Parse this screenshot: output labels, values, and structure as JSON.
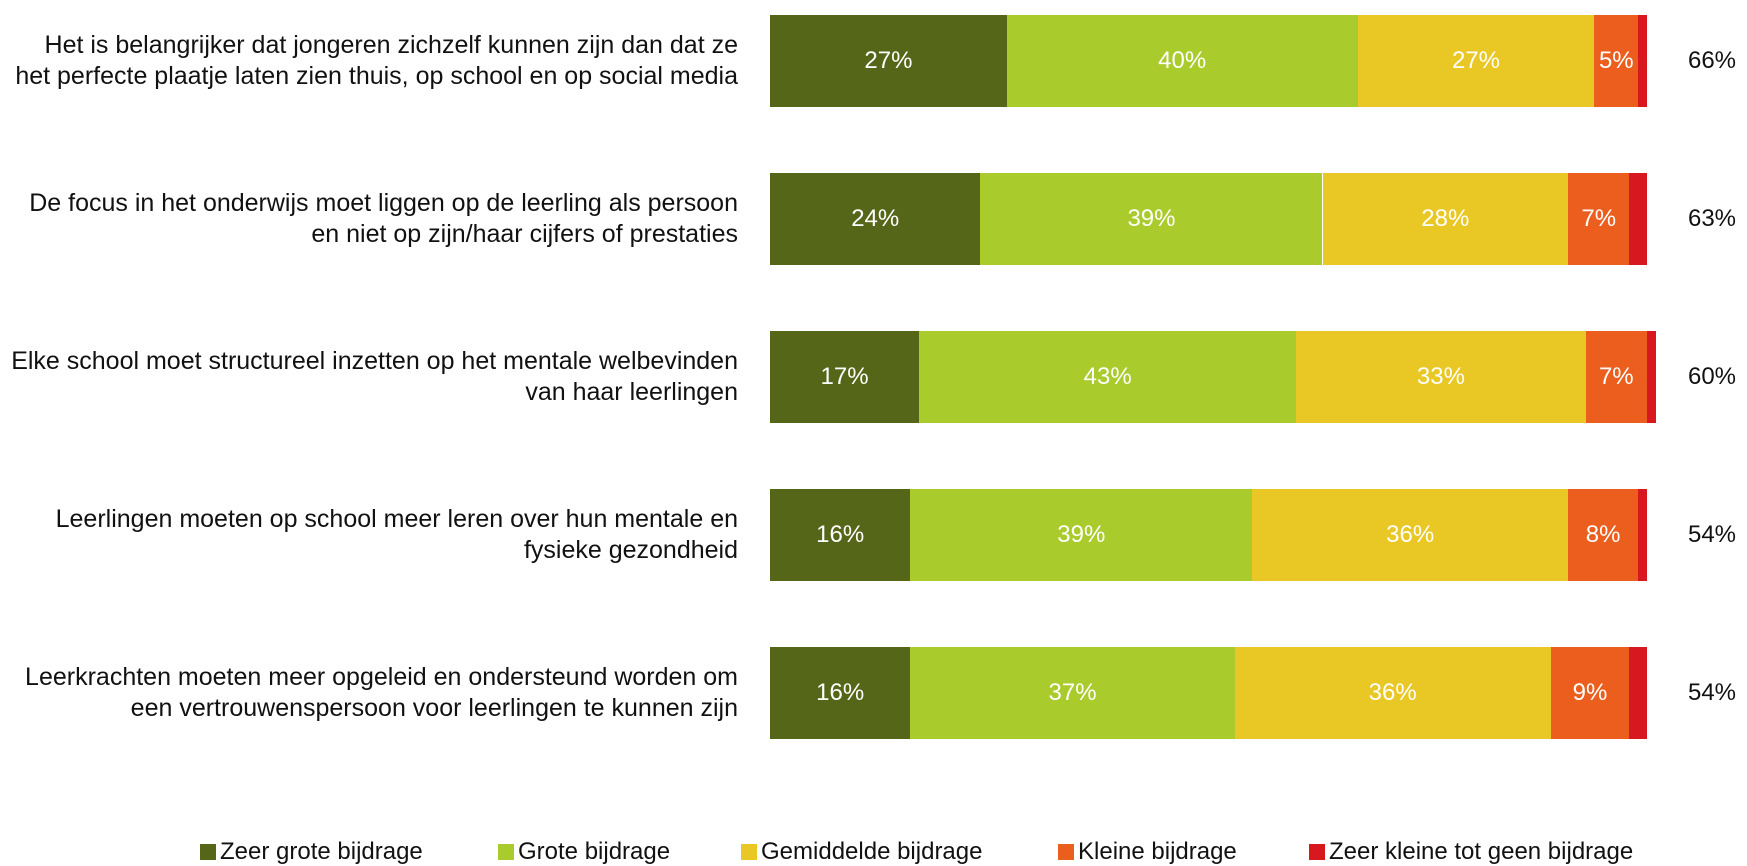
{
  "chart_data": {
    "type": "stacked_bar_horizontal",
    "categories": [
      "Het is belangrijker dat jongeren zichzelf kunnen zijn dan dat ze het perfecte plaatje laten zien thuis, op school en op social media",
      "De focus in het onderwijs moet liggen op de leerling als persoon en niet op zijn/haar cijfers of prestaties",
      "Elke school moet structureel inzetten op het mentale welbevinden van haar leerlingen",
      "Leerlingen moeten op school meer leren over hun mentale en fysieke gezondheid",
      "Leerkrachten moeten meer opgeleid en ondersteund worden om een vertrouwenspersoon voor leerlingen te kunnen zijn"
    ],
    "xlim": [
      0,
      100
    ],
    "series": [
      {
        "name": "Zeer grote bijdrage",
        "color": "#566619",
        "values": [
          27,
          24,
          17,
          16,
          16
        ],
        "value_labels": [
          "27%",
          "24%",
          "17%",
          "16%",
          "16%"
        ]
      },
      {
        "name": "Grote bijdrage",
        "color": "#aacb2c",
        "values": [
          40,
          39,
          43,
          39,
          37
        ],
        "value_labels": [
          "40%",
          "39%",
          "43%",
          "39%",
          "37%"
        ]
      },
      {
        "name": "Gemiddelde bijdrage",
        "color": "#e9c826",
        "values": [
          27,
          28,
          33,
          36,
          36
        ],
        "value_labels": [
          "27%",
          "28%",
          "33%",
          "36%",
          "36%"
        ]
      },
      {
        "name": "Kleine bijdrage",
        "color": "#eb5e1e",
        "values": [
          5,
          7,
          7,
          8,
          9
        ],
        "value_labels": [
          "5%",
          "7%",
          "7%",
          "8%",
          "9%"
        ]
      },
      {
        "name": "Zeer kleine tot geen bijdrage",
        "color": "#d7191f",
        "values": [
          1,
          2,
          1,
          1,
          2
        ]
      }
    ],
    "totals": {
      "values": [
        66,
        63,
        60,
        54,
        54
      ],
      "value_labels": [
        "66%",
        "63%",
        "60%",
        "54%",
        "54%"
      ]
    },
    "legend": "bottom"
  }
}
